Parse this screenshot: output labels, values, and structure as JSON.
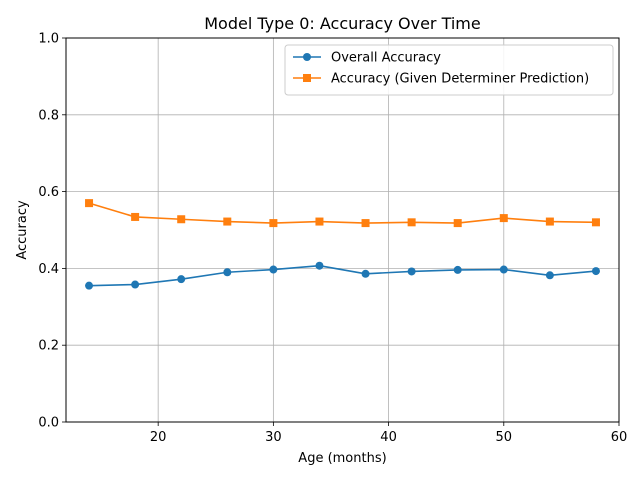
{
  "chart_data": {
    "type": "line",
    "title": "Model Type 0: Accuracy Over Time",
    "xlabel": "Age (months)",
    "ylabel": "Accuracy",
    "xlim": [
      12,
      60
    ],
    "ylim": [
      0,
      1
    ],
    "xticks": [
      20,
      30,
      40,
      50,
      60
    ],
    "yticks": [
      0.0,
      0.2,
      0.4,
      0.6,
      0.8,
      1.0
    ],
    "grid": true,
    "legend_position": "top-right",
    "x": [
      14,
      18,
      22,
      26,
      30,
      34,
      38,
      42,
      46,
      50,
      54,
      58
    ],
    "series": [
      {
        "name": "Overall Accuracy",
        "color": "#1f77b4",
        "marker": "circle",
        "values": [
          0.355,
          0.358,
          0.372,
          0.39,
          0.397,
          0.407,
          0.386,
          0.392,
          0.396,
          0.397,
          0.382,
          0.393
        ]
      },
      {
        "name": "Accuracy (Given Determiner Prediction)",
        "color": "#ff7f0e",
        "marker": "square",
        "values": [
          0.57,
          0.534,
          0.528,
          0.522,
          0.518,
          0.522,
          0.518,
          0.52,
          0.518,
          0.531,
          0.522,
          0.52
        ]
      }
    ]
  }
}
